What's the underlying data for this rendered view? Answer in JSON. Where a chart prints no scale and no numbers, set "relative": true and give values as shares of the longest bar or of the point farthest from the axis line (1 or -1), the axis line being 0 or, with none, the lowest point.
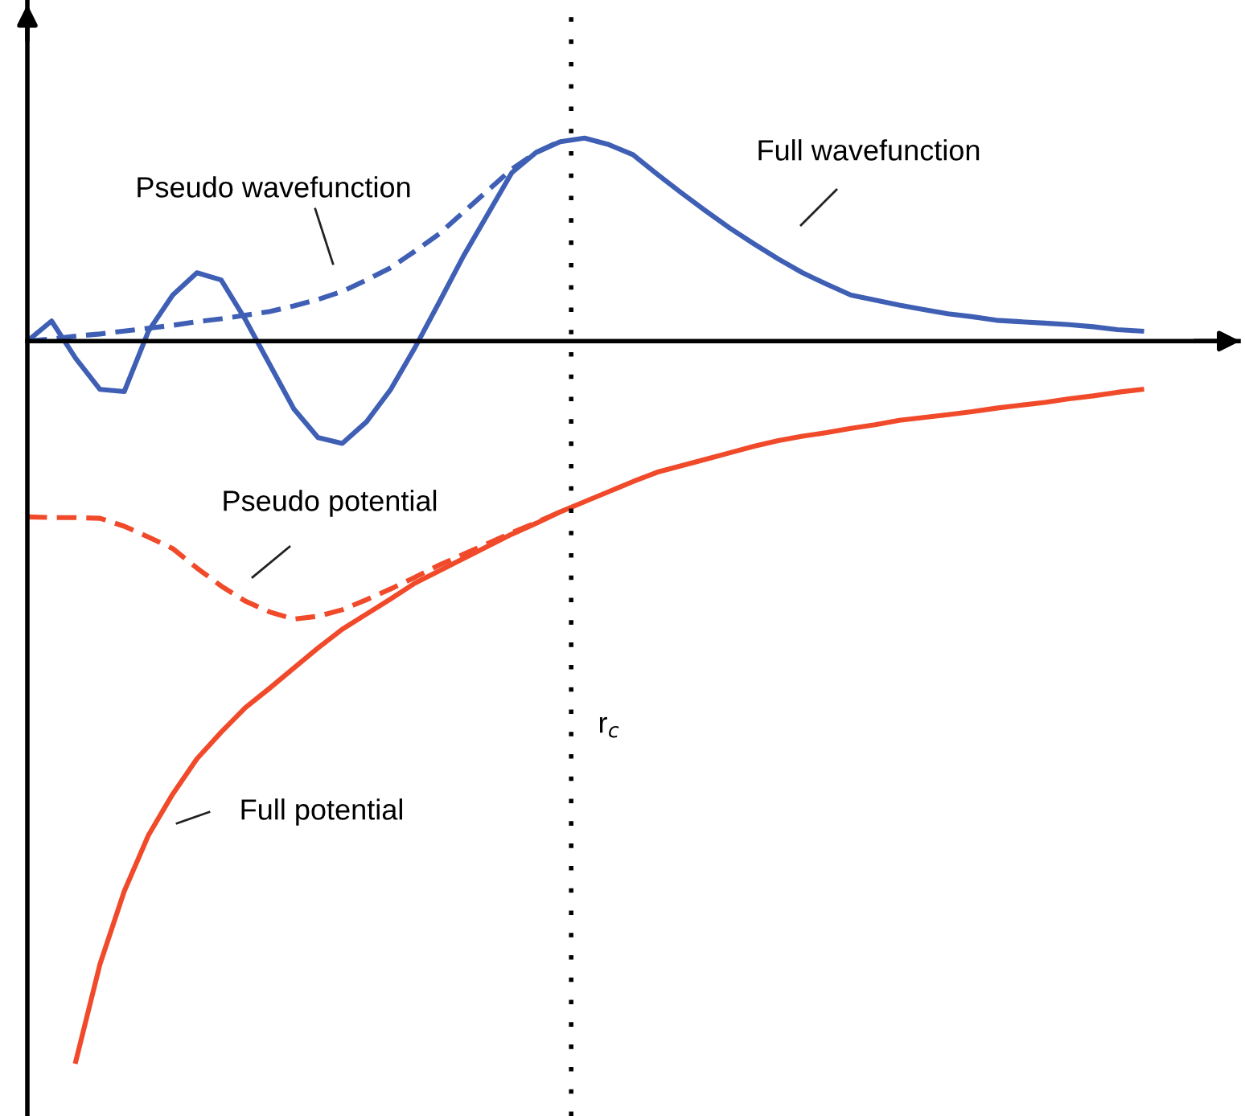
{
  "chart_data": {
    "type": "line",
    "relative": true,
    "categories": [
      null,
      null,
      null,
      null,
      null,
      null,
      null,
      null,
      null,
      null,
      null,
      null,
      null,
      null,
      null,
      null,
      null,
      null,
      null,
      null,
      null,
      null,
      null,
      null,
      null,
      null,
      null,
      null,
      null,
      null,
      null,
      null,
      null,
      null,
      null,
      null,
      null,
      null,
      null,
      null,
      null,
      null,
      null,
      null,
      null,
      null,
      null,
      null,
      null,
      null,
      null
    ],
    "series": [
      {
        "name": "Full wavefunction",
        "color": "#3f5fb5",
        "line_style": "solid",
        "values": [
          0,
          0.028,
          -0.024,
          -0.067,
          -0.07,
          0.014,
          0.064,
          0.095,
          0.085,
          0.03,
          -0.032,
          -0.094,
          -0.134,
          -0.142,
          -0.112,
          -0.067,
          -0.009,
          0.054,
          0.118,
          0.176,
          0.234,
          0.262,
          0.277,
          0.282,
          0.273,
          0.259,
          0.232,
          0.206,
          0.181,
          0.157,
          0.135,
          0.114,
          0.095,
          0.079,
          0.064,
          0.057,
          0.05,
          0.044,
          0.038,
          0.034,
          0.029,
          0.027,
          0.025,
          0.023,
          0.02,
          0.016,
          0.014,
          null,
          null,
          null,
          null
        ]
      },
      {
        "name": "Pseudo wavefunction",
        "color": "#3f5fb5",
        "line_style": "dashed",
        "values": [
          0,
          0.003,
          0.007,
          0.01,
          0.014,
          0.018,
          0.022,
          0.027,
          0.031,
          0.036,
          0.041,
          0.049,
          0.058,
          0.069,
          0.085,
          0.102,
          0.125,
          0.149,
          0.179,
          0.209,
          0.239,
          0.262,
          0.278,
          null,
          null,
          null,
          null,
          null,
          null,
          null,
          null,
          null,
          null,
          null,
          null,
          null,
          null,
          null,
          null,
          null,
          null,
          null,
          null,
          null,
          null,
          null,
          null,
          null,
          null,
          null,
          null
        ]
      },
      {
        "name": "Full potential",
        "color": "#f04a2a",
        "line_style": "solid",
        "values": [
          null,
          null,
          -1,
          -0.865,
          -0.764,
          -0.686,
          -0.629,
          -0.58,
          -0.543,
          -0.509,
          -0.482,
          -0.454,
          -0.426,
          -0.4,
          -0.379,
          -0.358,
          -0.336,
          -0.319,
          -0.302,
          -0.285,
          -0.268,
          -0.253,
          -0.237,
          -0.223,
          -0.209,
          -0.195,
          -0.182,
          -0.173,
          -0.164,
          -0.155,
          -0.146,
          -0.138,
          -0.132,
          -0.127,
          -0.121,
          -0.116,
          -0.11,
          -0.106,
          -0.102,
          -0.098,
          -0.093,
          -0.089,
          -0.085,
          -0.08,
          -0.076,
          -0.071,
          -0.067,
          null,
          null,
          null,
          null
        ]
      },
      {
        "name": "Pseudo potential",
        "color": "#f04a2a",
        "line_style": "dashed",
        "values": [
          -0.244,
          -0.245,
          -0.245,
          -0.246,
          -0.257,
          -0.272,
          -0.288,
          -0.315,
          -0.34,
          -0.361,
          -0.376,
          -0.386,
          -0.382,
          -0.373,
          -0.359,
          -0.344,
          -0.328,
          -0.311,
          -0.296,
          -0.281,
          -0.266,
          -0.252,
          -0.237,
          null,
          null,
          null,
          null,
          null,
          null,
          null,
          null,
          null,
          null,
          null,
          null,
          null,
          null,
          null,
          null,
          null,
          null,
          null,
          null,
          null,
          null,
          null,
          null,
          null,
          null,
          null,
          null
        ]
      }
    ],
    "annotations": [
      "r$_{c}$"
    ]
  }
}
